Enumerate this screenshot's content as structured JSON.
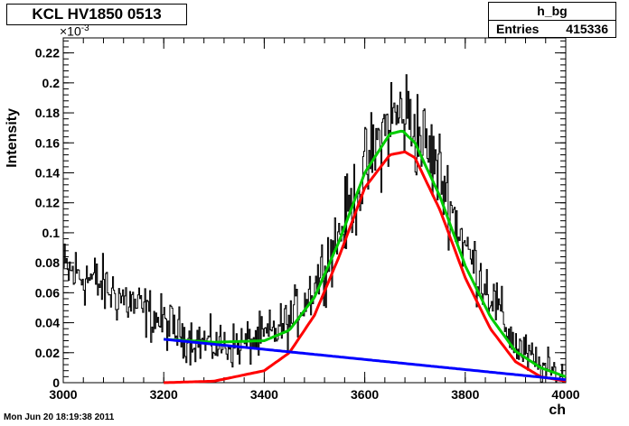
{
  "title_box": "KCL HV1850 0513",
  "stats": {
    "name": "h_bg",
    "entries_label": "Entries",
    "entries_value": "415336"
  },
  "timestamp": "Mon Jun 20 18:19:38 2011",
  "chart_data": {
    "type": "line",
    "title": "KCL HV1850 0513",
    "xlabel": "ch",
    "ylabel": "Intensity",
    "y_multiplier_base": "×10",
    "y_multiplier_exp": "-3",
    "xlim": [
      3000,
      4000
    ],
    "ylim": [
      0,
      0.23
    ],
    "x_ticks": [
      3000,
      3200,
      3400,
      3600,
      3800,
      4000
    ],
    "y_ticks": [
      0,
      0.02,
      0.04,
      0.06,
      0.08,
      0.1,
      0.12,
      0.14,
      0.16,
      0.18,
      0.2,
      0.22
    ],
    "series": [
      {
        "color": "#000000",
        "style": "histogram",
        "x": [
          3000,
          3050,
          3100,
          3150,
          3200,
          3250,
          3300,
          3350,
          3400,
          3450,
          3500,
          3550,
          3600,
          3650,
          3680,
          3700,
          3750,
          3800,
          3850,
          3900,
          3950,
          4000
        ],
        "values": [
          0.075,
          0.07,
          0.06,
          0.05,
          0.04,
          0.03,
          0.025,
          0.025,
          0.03,
          0.04,
          0.065,
          0.1,
          0.14,
          0.175,
          0.18,
          0.17,
          0.14,
          0.09,
          0.06,
          0.025,
          0.01,
          0.003
        ]
      },
      {
        "color": "#00cc00",
        "style": "curve",
        "x": [
          3200,
          3300,
          3400,
          3450,
          3500,
          3550,
          3600,
          3650,
          3675,
          3700,
          3750,
          3800,
          3850,
          3900,
          3950,
          4000
        ],
        "values": [
          0.029,
          0.027,
          0.028,
          0.035,
          0.057,
          0.095,
          0.14,
          0.166,
          0.168,
          0.16,
          0.124,
          0.078,
          0.044,
          0.021,
          0.01,
          0.004
        ]
      },
      {
        "color": "#ff0000",
        "style": "curve",
        "x": [
          3200,
          3300,
          3400,
          3450,
          3500,
          3550,
          3600,
          3650,
          3680,
          3700,
          3750,
          3800,
          3850,
          3900,
          3950,
          4000
        ],
        "values": [
          0.0,
          0.001,
          0.008,
          0.02,
          0.045,
          0.085,
          0.13,
          0.152,
          0.154,
          0.15,
          0.115,
          0.07,
          0.036,
          0.014,
          0.004,
          0.001
        ]
      },
      {
        "color": "#0000ff",
        "style": "curve",
        "x": [
          3200,
          4000
        ],
        "values": [
          0.029,
          0.002
        ]
      }
    ]
  }
}
